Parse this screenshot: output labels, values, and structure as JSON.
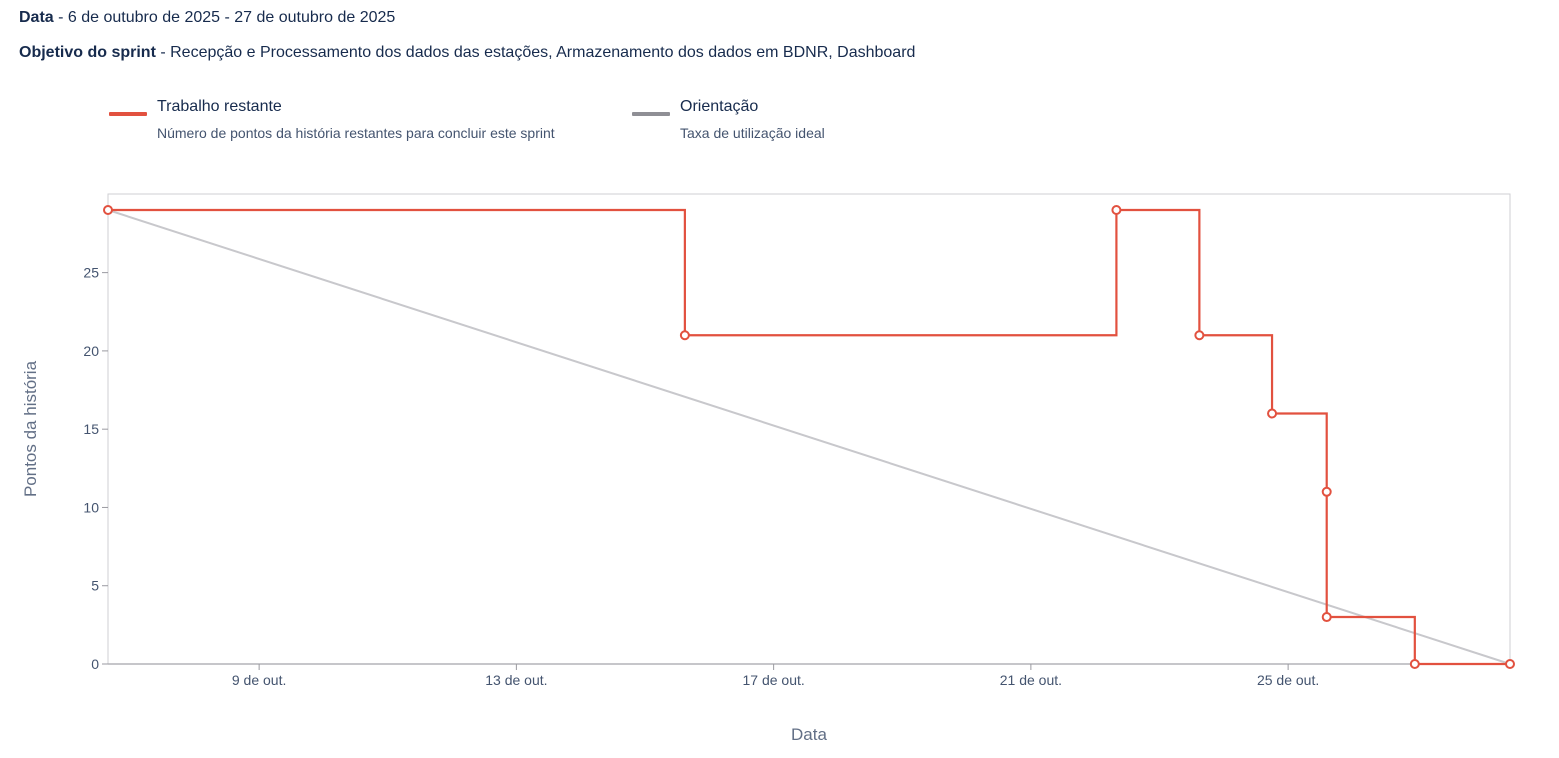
{
  "header": {
    "date_label": "Data",
    "date_value": " - 6 de outubro de 2025 - 27 de outubro de 2025",
    "goal_label": "Objetivo do sprint",
    "goal_value": " - Recepção e Processamento dos dados das estações, Armazenamento dos dados em BDNR, Dashboard"
  },
  "legend": [
    {
      "title": "Trabalho restante",
      "description": "Número de pontos da história restantes para concluir este sprint",
      "color": "#e2513f"
    },
    {
      "title": "Orientação",
      "description": "Taxa de utilização ideal",
      "color": "#8f8f95"
    }
  ],
  "chart_data": {
    "type": "line",
    "xlabel": "Data",
    "ylabel": "Pontos da história",
    "xlim": [
      0,
      21.8
    ],
    "ylim": [
      0,
      29
    ],
    "x_tick_values": [
      2.35,
      6.35,
      10.35,
      14.35,
      18.35
    ],
    "x_tick_labels": [
      "9 de out.",
      "13 de out.",
      "17 de out.",
      "21 de out.",
      "25 de out."
    ],
    "y_ticks": [
      0,
      5,
      10,
      15,
      20,
      25
    ],
    "grid": false,
    "series": [
      {
        "name": "Trabalho restante",
        "color": "#e2513f",
        "step": true,
        "points": [
          {
            "x": 0,
            "y": 29
          },
          {
            "x": 8.97,
            "y": 21
          },
          {
            "x": 15.68,
            "y": 29
          },
          {
            "x": 16.97,
            "y": 21
          },
          {
            "x": 18.1,
            "y": 16
          },
          {
            "x": 18.95,
            "y": 11
          },
          {
            "x": 18.95,
            "y": 3
          },
          {
            "x": 20.32,
            "y": 0
          },
          {
            "x": 21.8,
            "y": 0
          }
        ]
      },
      {
        "name": "Orientação",
        "color": "#c8c8cc",
        "points": [
          {
            "x": 0,
            "y": 29
          },
          {
            "x": 21.8,
            "y": 0
          }
        ]
      }
    ]
  }
}
